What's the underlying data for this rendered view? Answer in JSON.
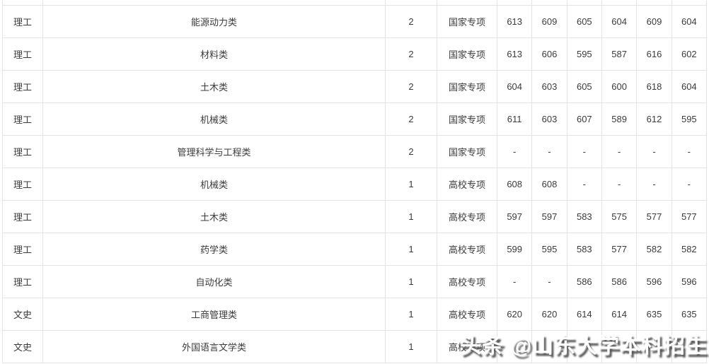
{
  "colors": {
    "background": "#ffffff",
    "grid_line": "#e4e4e4",
    "cell_text": "#3b3b3b",
    "watermark_fill": "#ffffff",
    "watermark_shadow": "#555555"
  },
  "watermark": {
    "text": "头条 @山东大学本科招生"
  },
  "table": {
    "rows": [
      {
        "category": "理工",
        "major": "能源动力类",
        "count": "2",
        "plan": "国家专项",
        "scores": [
          "613",
          "609",
          "605",
          "604",
          "609",
          "604"
        ]
      },
      {
        "category": "理工",
        "major": "材料类",
        "count": "2",
        "plan": "国家专项",
        "scores": [
          "613",
          "606",
          "595",
          "587",
          "616",
          "602"
        ]
      },
      {
        "category": "理工",
        "major": "土木类",
        "count": "2",
        "plan": "国家专项",
        "scores": [
          "604",
          "603",
          "605",
          "600",
          "618",
          "604"
        ]
      },
      {
        "category": "理工",
        "major": "机械类",
        "count": "2",
        "plan": "国家专项",
        "scores": [
          "611",
          "603",
          "607",
          "589",
          "612",
          "595"
        ]
      },
      {
        "category": "理工",
        "major": "管理科学与工程类",
        "count": "2",
        "plan": "国家专项",
        "scores": [
          "-",
          "-",
          "-",
          "-",
          "-",
          "-"
        ]
      },
      {
        "category": "理工",
        "major": "机械类",
        "count": "1",
        "plan": "高校专项",
        "scores": [
          "608",
          "608",
          "-",
          "-",
          "-",
          "-"
        ]
      },
      {
        "category": "理工",
        "major": "土木类",
        "count": "1",
        "plan": "高校专项",
        "scores": [
          "597",
          "597",
          "583",
          "575",
          "577",
          "577"
        ]
      },
      {
        "category": "理工",
        "major": "药学类",
        "count": "1",
        "plan": "高校专项",
        "scores": [
          "599",
          "595",
          "583",
          "577",
          "582",
          "582"
        ]
      },
      {
        "category": "理工",
        "major": "自动化类",
        "count": "1",
        "plan": "高校专项",
        "scores": [
          "-",
          "-",
          "586",
          "586",
          "596",
          "596"
        ]
      },
      {
        "category": "文史",
        "major": "工商管理类",
        "count": "1",
        "plan": "高校专项",
        "scores": [
          "620",
          "620",
          "614",
          "614",
          "635",
          "635"
        ]
      },
      {
        "category": "文史",
        "major": "外国语言文学类",
        "count": "1",
        "plan": "高校专项",
        "scores": [
          "",
          "",
          "",
          "",
          "",
          ""
        ]
      }
    ]
  }
}
